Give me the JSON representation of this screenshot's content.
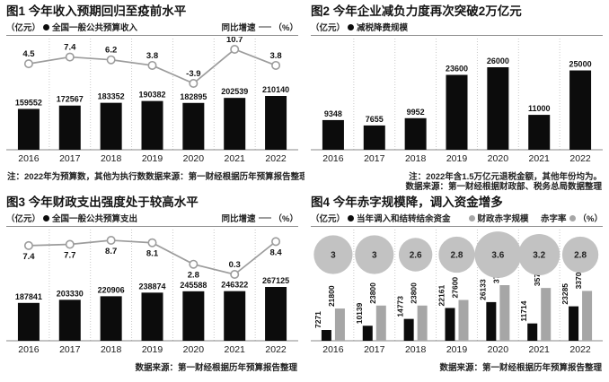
{
  "colors": {
    "bar_black": "#0c0c0c",
    "bar_gray": "#a6a6a6",
    "line_gray": "#9c9c9c",
    "bubble_gray": "#c2c2c2",
    "grid_dash": "#c9c9c9",
    "axis": "#8a8a8a"
  },
  "chart_data": [
    {
      "type": "bar",
      "title": "图1 今年收入预期回归至疫前水平",
      "unit": "（亿元）",
      "categories": [
        "2016",
        "2017",
        "2018",
        "2019",
        "2020",
        "2021",
        "2022"
      ],
      "bar_series": {
        "name": "全国一般公共预算收入",
        "values": [
          159552,
          172567,
          183352,
          190382,
          182895,
          202539,
          210140
        ]
      },
      "line_series": {
        "name": "同比增速",
        "unit": "（%）",
        "values": [
          4.5,
          7.4,
          6.2,
          3.8,
          -3.9,
          10.7,
          3.8
        ]
      },
      "line_label_pos": "above",
      "note": "注：2022年为预算数，其他为执行数",
      "source": "数据来源：第一财经根据历年预算报告整理"
    },
    {
      "type": "bar",
      "title": "图2 今年企业减负力度再次突破2万亿元",
      "unit": "（亿元）",
      "categories": [
        "2016",
        "2017",
        "2018",
        "2019",
        "2020",
        "2021",
        "2022"
      ],
      "bar_series": {
        "name": "减税降费规模",
        "values": [
          9348,
          7655,
          9952,
          23600,
          26000,
          11000,
          25000
        ]
      },
      "note": "注：2022年含1.5万亿元退税金额，其他年份均为。",
      "source": "数据来源：第一财经根据财政部、税务总局数据整理"
    },
    {
      "type": "bar",
      "title": "图3 今年财政支出强度处于较高水平",
      "unit": "（亿元）",
      "categories": [
        "2016",
        "2017",
        "2018",
        "2019",
        "2020",
        "2021",
        "2022"
      ],
      "bar_series": {
        "name": "全国一般公共预算支出",
        "values": [
          187841,
          203330,
          220906,
          238874,
          245588,
          246322,
          267125
        ]
      },
      "line_series": {
        "name": "同比增速",
        "unit": "（%）",
        "values": [
          7.4,
          7.7,
          8.7,
          8.1,
          2.8,
          0.3,
          8.4
        ]
      },
      "line_label_pos": "below",
      "note": "",
      "source": "数据来源：第一财经根据历年预算报告整理"
    },
    {
      "type": "grouped-bar",
      "title": "图4 今年赤字规模降，调入资金增多",
      "unit": "（亿元）",
      "categories": [
        "2016",
        "2017",
        "2018",
        "2019",
        "2020",
        "2021",
        "2022"
      ],
      "series": [
        {
          "name": "当年调入和结转结余资金",
          "color": "#0c0c0c",
          "values": [
            7271,
            10139,
            14773,
            22161,
            26133,
            11714,
            23285
          ]
        },
        {
          "name": "财政赤字规模",
          "color": "#a6a6a6",
          "values": [
            21800,
            23800,
            23800,
            27600,
            37600,
            35700,
            33700
          ]
        }
      ],
      "bubble_series": {
        "name": "赤字率",
        "unit": "（%）",
        "values": [
          3,
          3,
          2.6,
          2.8,
          3.6,
          3.2,
          2.8
        ]
      },
      "note": "",
      "source": "数据来源：第一财经根据历年预算报告整理"
    }
  ]
}
